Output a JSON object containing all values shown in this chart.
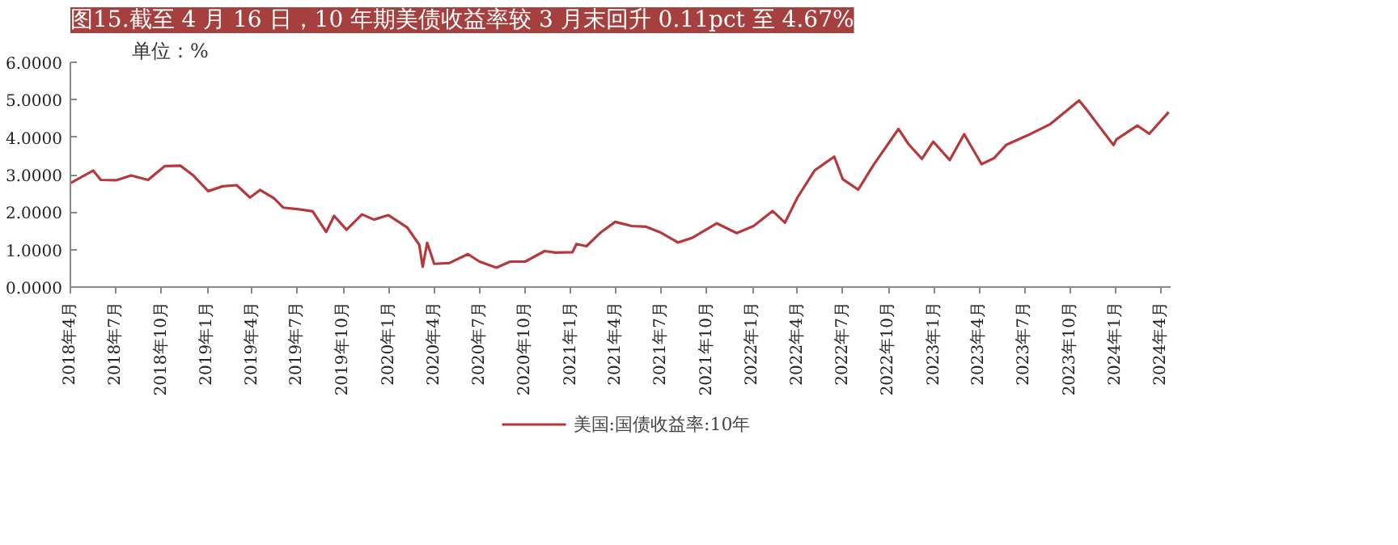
{
  "chart_data": {
    "type": "line",
    "title": "图15.截至 4 月 16 日，10 年期美债收益率较 3 月末回升 0.11pct 至 4.67%",
    "annotations": [
      "单位：%"
    ],
    "x": [
      "2018-04-02",
      "2018-05-17",
      "2018-06-01",
      "2018-07-02",
      "2018-08-01",
      "2018-09-04",
      "2018-10-08",
      "2018-11-08",
      "2018-12-03",
      "2019-01-03",
      "2019-02-01",
      "2019-03-01",
      "2019-03-28",
      "2019-04-17",
      "2019-05-15",
      "2019-06-03",
      "2019-07-08",
      "2019-08-01",
      "2019-08-28",
      "2019-09-13",
      "2019-10-08",
      "2019-11-08",
      "2019-12-02",
      "2019-12-31",
      "2020-01-15",
      "2020-02-07",
      "2020-03-02",
      "2020-03-09",
      "2020-03-18",
      "2020-04-01",
      "2020-05-01",
      "2020-06-08",
      "2020-07-01",
      "2020-08-04",
      "2020-09-01",
      "2020-10-01",
      "2020-11-09",
      "2020-12-01",
      "2021-01-04",
      "2021-01-12",
      "2021-02-01",
      "2021-03-01",
      "2021-03-31",
      "2021-05-03",
      "2021-06-01",
      "2021-07-01",
      "2021-08-04",
      "2021-09-01",
      "2021-10-21",
      "2021-11-30",
      "2022-01-03",
      "2022-02-10",
      "2022-03-07",
      "2022-04-01",
      "2022-05-06",
      "2022-06-14",
      "2022-07-01",
      "2022-08-01",
      "2022-09-01",
      "2022-10-21",
      "2022-11-10",
      "2022-12-07",
      "2022-12-30",
      "2023-02-01",
      "2023-03-02",
      "2023-04-06",
      "2023-05-01",
      "2023-05-26",
      "2023-07-06",
      "2023-08-21",
      "2023-10-19",
      "2023-11-01",
      "2023-12-27",
      "2024-01-02",
      "2024-02-13",
      "2024-03-08",
      "2024-04-16"
    ],
    "series": [
      {
        "name": "美国:国债收益率:10年",
        "color": "#b5393b",
        "values": [
          2.78,
          3.11,
          2.86,
          2.85,
          2.98,
          2.86,
          3.23,
          3.24,
          2.99,
          2.56,
          2.69,
          2.72,
          2.39,
          2.59,
          2.37,
          2.12,
          2.07,
          2.02,
          1.47,
          1.9,
          1.53,
          1.94,
          1.8,
          1.92,
          1.79,
          1.59,
          1.13,
          0.54,
          1.18,
          0.62,
          0.64,
          0.88,
          0.68,
          0.52,
          0.68,
          0.68,
          0.96,
          0.92,
          0.93,
          1.15,
          1.09,
          1.45,
          1.74,
          1.63,
          1.61,
          1.45,
          1.19,
          1.31,
          1.7,
          1.44,
          1.63,
          2.03,
          1.72,
          2.39,
          3.12,
          3.48,
          2.88,
          2.6,
          3.26,
          4.22,
          3.82,
          3.42,
          3.88,
          3.39,
          4.08,
          3.28,
          3.44,
          3.8,
          4.04,
          4.34,
          4.98,
          4.77,
          3.79,
          3.94,
          4.31,
          4.09,
          4.67
        ]
      }
    ],
    "xlim": [
      "2018-04-01",
      "2024-04-20"
    ],
    "xticks": [
      {
        "value": "2018-04-01",
        "label": "2018年4月"
      },
      {
        "value": "2018-07-01",
        "label": "2018年7月"
      },
      {
        "value": "2018-10-01",
        "label": "2018年10月"
      },
      {
        "value": "2019-01-01",
        "label": "2019年1月"
      },
      {
        "value": "2019-04-01",
        "label": "2019年4月"
      },
      {
        "value": "2019-07-01",
        "label": "2019年7月"
      },
      {
        "value": "2019-10-01",
        "label": "2019年10月"
      },
      {
        "value": "2020-01-01",
        "label": "2020年1月"
      },
      {
        "value": "2020-04-01",
        "label": "2020年4月"
      },
      {
        "value": "2020-07-01",
        "label": "2020年7月"
      },
      {
        "value": "2020-10-01",
        "label": "2020年10月"
      },
      {
        "value": "2021-01-01",
        "label": "2021年1月"
      },
      {
        "value": "2021-04-01",
        "label": "2021年4月"
      },
      {
        "value": "2021-07-01",
        "label": "2021年7月"
      },
      {
        "value": "2021-10-01",
        "label": "2021年10月"
      },
      {
        "value": "2022-01-01",
        "label": "2022年1月"
      },
      {
        "value": "2022-04-01",
        "label": "2022年4月"
      },
      {
        "value": "2022-07-01",
        "label": "2022年7月"
      },
      {
        "value": "2022-10-01",
        "label": "2022年10月"
      },
      {
        "value": "2023-01-01",
        "label": "2023年1月"
      },
      {
        "value": "2023-04-01",
        "label": "2023年4月"
      },
      {
        "value": "2023-07-01",
        "label": "2023年7月"
      },
      {
        "value": "2023-10-01",
        "label": "2023年10月"
      },
      {
        "value": "2024-01-01",
        "label": "2024年1月"
      },
      {
        "value": "2024-04-01",
        "label": "2024年4月"
      }
    ],
    "ylim": [
      0,
      6
    ],
    "yticks": [
      {
        "value": 0,
        "label": "0.0000"
      },
      {
        "value": 1,
        "label": "1.0000"
      },
      {
        "value": 2,
        "label": "2.0000"
      },
      {
        "value": 3,
        "label": "3.0000"
      },
      {
        "value": 4,
        "label": "4.0000"
      },
      {
        "value": 5,
        "label": "5.0000"
      },
      {
        "value": 6,
        "label": "6.0000"
      }
    ],
    "legend": "bottom",
    "line_style": "solid"
  }
}
